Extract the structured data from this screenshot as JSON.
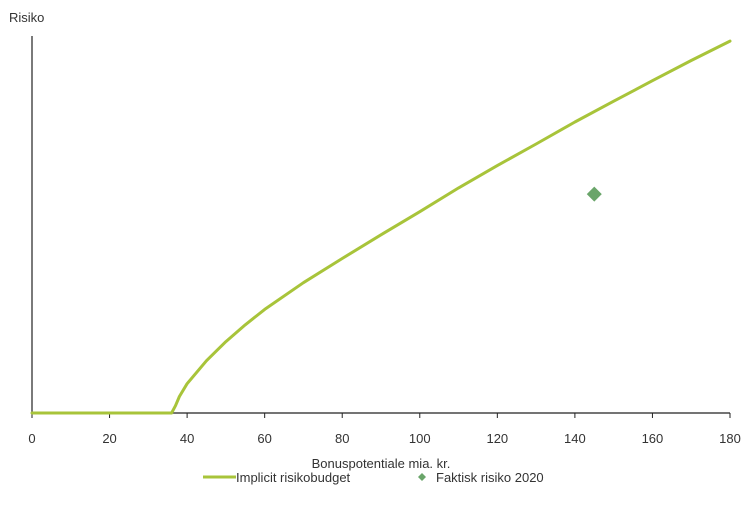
{
  "chart_data": {
    "type": "line",
    "title": "",
    "ylabel": "Risiko",
    "xlabel": "Bonuspotentiale mia. kr.",
    "xlim": [
      0,
      180
    ],
    "ylim": [
      0,
      100
    ],
    "x_ticks": [
      "0",
      "20",
      "40",
      "60",
      "80",
      "100",
      "120",
      "140",
      "160",
      "180"
    ],
    "x_tick_values": [
      0,
      20,
      40,
      60,
      80,
      100,
      120,
      140,
      160,
      180
    ],
    "grid": false,
    "legend_position": "bottom",
    "series": [
      {
        "name": "Implicit risikobudget",
        "type": "line",
        "color": "#a8c43a",
        "x": [
          0,
          36,
          37,
          38,
          40,
          45,
          50,
          55,
          60,
          70,
          80,
          90,
          100,
          110,
          120,
          130,
          140,
          150,
          160,
          170,
          180
        ],
        "y": [
          0,
          0,
          2,
          4.5,
          8,
          14.3,
          19.5,
          24.1,
          28.3,
          35.6,
          42.2,
          48.7,
          55,
          61.5,
          67.6,
          73.5,
          79.5,
          85.2,
          90.8,
          96.3,
          101.6
        ]
      },
      {
        "name": "Faktisk risiko 2020",
        "type": "scatter",
        "color": "#6aa56a",
        "marker": "diamond",
        "x": [
          145
        ],
        "y": [
          59.8
        ]
      }
    ]
  }
}
